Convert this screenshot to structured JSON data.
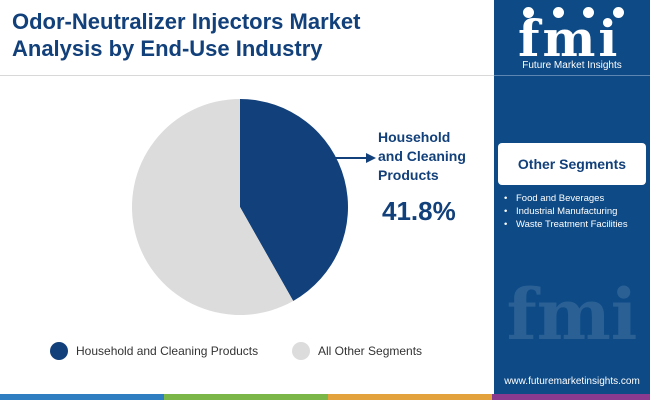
{
  "header": {
    "title_line1": "Odor-Neutralizer Injectors Market",
    "title_line2": "Analysis by End-Use Industry"
  },
  "sidebar": {
    "logo_letters": "fmi",
    "logo_subtitle": "Future Market Insights",
    "other_segments_heading": "Other Segments",
    "other_segments": [
      "Food and Beverages",
      "Industrial Manufacturing",
      "Waste Treatment Facilities"
    ],
    "website": "www.futuremarketinsights.com"
  },
  "colors": {
    "primary": "#12407a",
    "sidebar": "#0d4a86",
    "slice_main": "#12407a",
    "slice_other": "#dcdcdc",
    "bottom_bar": [
      "#2e7ec1",
      "#7ab648",
      "#e3a23b",
      "#8a3b8f"
    ]
  },
  "chart_data": {
    "type": "pie",
    "slices": [
      {
        "label": "Household and Cleaning Products",
        "value": 41.8,
        "color": "#12407a"
      },
      {
        "label": "All Other Segments",
        "value": 58.2,
        "color": "#dcdcdc"
      }
    ],
    "callout": {
      "label_line1": "Household",
      "label_line2": "and Cleaning",
      "label_line3": "Products",
      "value_text": "41.8%"
    },
    "legend": {
      "position": "bottom"
    }
  }
}
